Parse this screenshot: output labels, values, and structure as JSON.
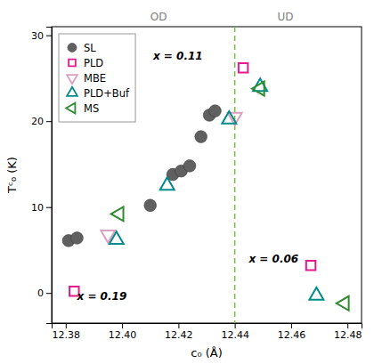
{
  "chart_data": {
    "type": "scatter",
    "xlabel": "c₀ (Å)",
    "ylabel": "Tᶜ₀ (K)",
    "xlim": [
      12.375,
      12.485
    ],
    "ylim": [
      -3.5,
      31
    ],
    "xticks": [
      12.38,
      {
        "value": 12.4,
        "label": "12.40"
      },
      12.42,
      12.44,
      12.46,
      12.48
    ],
    "yticks": [
      0,
      10,
      20,
      30
    ],
    "grid": false,
    "legend": "upper left",
    "vlines": [
      {
        "x": 12.44,
        "color": "#7db840",
        "line_style": "dashed"
      }
    ],
    "series": [
      {
        "name": "SL",
        "color": "#606060",
        "marker": "circle",
        "x": [
          12.381,
          12.384,
          12.41,
          12.418,
          12.421,
          12.424,
          12.428,
          12.431,
          12.433
        ],
        "values": [
          6.1,
          6.4,
          10.2,
          13.8,
          14.2,
          14.8,
          18.2,
          20.7,
          21.2
        ]
      },
      {
        "name": "PLD",
        "color": "#e8198b",
        "marker": "square-open",
        "x": [
          12.443,
          12.467,
          12.383
        ],
        "values": [
          26.2,
          3.2,
          0.2
        ]
      },
      {
        "name": "MBE",
        "color": "#dda0c0",
        "marker": "triangle-down-open",
        "x": [
          12.395,
          12.44
        ],
        "values": [
          6.8,
          20.5
        ]
      },
      {
        "name": "PLD+Buf",
        "color": "#008B8B",
        "marker": "triangle-up-open",
        "x": [
          12.398,
          12.416,
          12.438,
          12.449,
          12.469
        ],
        "values": [
          6.2,
          12.5,
          20.2,
          24.0,
          -0.3
        ]
      },
      {
        "name": "MS",
        "color": "#2e8b2e",
        "marker": "triangle-left-open",
        "x": [
          12.399,
          12.449,
          12.479
        ],
        "values": [
          9.2,
          23.8,
          -1.2
        ]
      }
    ],
    "annotations": [
      {
        "text": "x = 0.11",
        "x": 12.411,
        "y": 27.2
      },
      {
        "text": "x = 0.06",
        "x": 12.445,
        "y": 3.5
      },
      {
        "text": "x = 0.19",
        "x": 12.384,
        "y": -0.8
      },
      {
        "text": "OD",
        "x": 12.413
      },
      {
        "text": "UD",
        "x": 12.458
      }
    ]
  }
}
